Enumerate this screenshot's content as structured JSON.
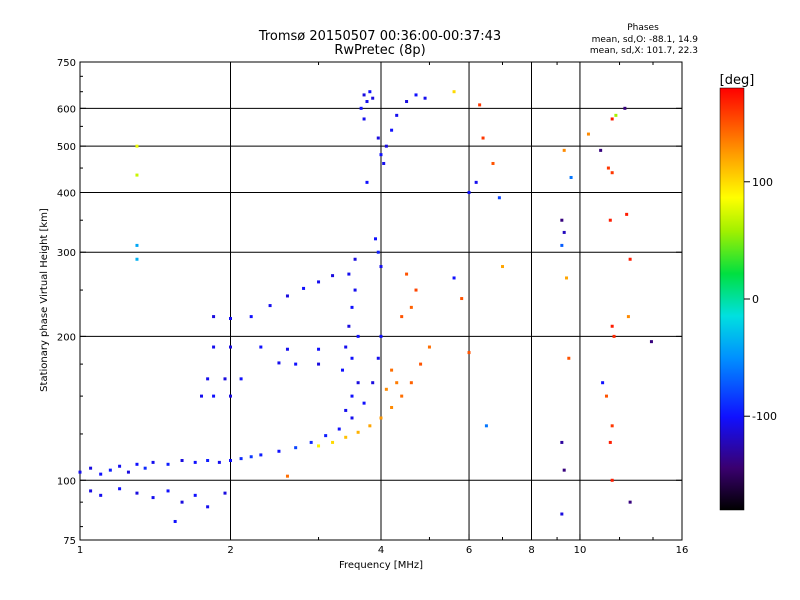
{
  "chart_data": {
    "type": "scatter",
    "title": "Tromsø 20150507 00:36:00-00:37:43",
    "subtitle": "RwPretec (8p)",
    "stats_title": "Phases",
    "stats_line1": "mean, sd,O: -88.1, 14.9",
    "stats_line2": "mean, sd,X: 101.7, 22.3",
    "xlabel": "Frequency [MHz]",
    "ylabel": "Stationary phase Virtual Height [km]",
    "x_scale": "log",
    "y_scale": "log",
    "xlim": [
      1,
      16
    ],
    "ylim": [
      75,
      750
    ],
    "x_ticks": [
      1,
      2,
      4,
      6,
      8,
      10,
      16
    ],
    "x_tick_labels": [
      "1",
      "2",
      "4",
      "6",
      "8",
      "10",
      "16"
    ],
    "y_ticks": [
      75,
      100,
      200,
      300,
      400,
      500,
      600,
      750
    ],
    "y_tick_labels": [
      "75",
      "100",
      "200",
      "300",
      "400",
      "500",
      "600",
      "750"
    ],
    "x_grid": [
      2,
      4,
      6,
      8,
      10
    ],
    "y_grid": [
      100,
      200,
      300,
      400,
      500,
      600
    ],
    "colorbar": {
      "label": "[deg]",
      "range": [
        -180,
        180
      ],
      "ticks": [
        100,
        0,
        -100
      ],
      "tick_labels": [
        "100",
        "0",
        "-100"
      ]
    },
    "series": [
      {
        "values": [
          {
            "x": 1.0,
            "y": 104,
            "c": -105
          },
          {
            "x": 1.05,
            "y": 106,
            "c": -110
          },
          {
            "x": 1.1,
            "y": 103,
            "c": -100
          },
          {
            "x": 1.15,
            "y": 105,
            "c": -95
          },
          {
            "x": 1.2,
            "y": 107,
            "c": -105
          },
          {
            "x": 1.25,
            "y": 104,
            "c": -110
          },
          {
            "x": 1.3,
            "y": 108,
            "c": -100
          },
          {
            "x": 1.35,
            "y": 106,
            "c": -90
          },
          {
            "x": 1.4,
            "y": 109,
            "c": -105
          },
          {
            "x": 1.5,
            "y": 108,
            "c": -95
          },
          {
            "x": 1.6,
            "y": 110,
            "c": -110
          },
          {
            "x": 1.7,
            "y": 109,
            "c": -100
          },
          {
            "x": 1.8,
            "y": 110,
            "c": -95
          },
          {
            "x": 1.9,
            "y": 109,
            "c": -105
          },
          {
            "x": 2.0,
            "y": 110,
            "c": -100
          },
          {
            "x": 2.1,
            "y": 111,
            "c": -90
          },
          {
            "x": 2.2,
            "y": 112,
            "c": -85
          },
          {
            "x": 2.3,
            "y": 113,
            "c": -95
          },
          {
            "x": 2.5,
            "y": 115,
            "c": -100
          },
          {
            "x": 2.7,
            "y": 117,
            "c": -80
          },
          {
            "x": 2.9,
            "y": 120,
            "c": -90
          },
          {
            "x": 3.1,
            "y": 124,
            "c": -95
          },
          {
            "x": 3.3,
            "y": 128,
            "c": -100
          },
          {
            "x": 3.5,
            "y": 135,
            "c": -105
          },
          {
            "x": 3.7,
            "y": 145,
            "c": -100
          },
          {
            "x": 3.85,
            "y": 160,
            "c": -110
          },
          {
            "x": 3.95,
            "y": 180,
            "c": -105
          },
          {
            "x": 4.0,
            "y": 200,
            "c": -100
          },
          {
            "x": 1.05,
            "y": 95,
            "c": -110
          },
          {
            "x": 1.1,
            "y": 93,
            "c": -105
          },
          {
            "x": 1.2,
            "y": 96,
            "c": -100
          },
          {
            "x": 1.3,
            "y": 94,
            "c": -110
          },
          {
            "x": 1.4,
            "y": 92,
            "c": -105
          },
          {
            "x": 1.5,
            "y": 95,
            "c": -100
          },
          {
            "x": 1.6,
            "y": 90,
            "c": -110
          },
          {
            "x": 1.7,
            "y": 93,
            "c": -100
          },
          {
            "x": 1.8,
            "y": 88,
            "c": -105
          },
          {
            "x": 1.95,
            "y": 94,
            "c": -110
          },
          {
            "x": 1.55,
            "y": 82,
            "c": -100
          },
          {
            "x": 1.75,
            "y": 150,
            "c": -105
          },
          {
            "x": 1.85,
            "y": 150,
            "c": -100
          },
          {
            "x": 2.0,
            "y": 150,
            "c": -110
          },
          {
            "x": 1.8,
            "y": 163,
            "c": -105
          },
          {
            "x": 1.95,
            "y": 163,
            "c": -110
          },
          {
            "x": 2.1,
            "y": 163,
            "c": -100
          },
          {
            "x": 1.85,
            "y": 190,
            "c": -105
          },
          {
            "x": 2.0,
            "y": 190,
            "c": -110
          },
          {
            "x": 2.3,
            "y": 190,
            "c": -100
          },
          {
            "x": 2.6,
            "y": 188,
            "c": -105
          },
          {
            "x": 3.0,
            "y": 188,
            "c": -100
          },
          {
            "x": 2.5,
            "y": 176,
            "c": -105
          },
          {
            "x": 2.7,
            "y": 175,
            "c": -100
          },
          {
            "x": 3.0,
            "y": 175,
            "c": -110
          },
          {
            "x": 1.85,
            "y": 220,
            "c": -110
          },
          {
            "x": 2.0,
            "y": 218,
            "c": -105
          },
          {
            "x": 2.2,
            "y": 220,
            "c": -100
          },
          {
            "x": 2.4,
            "y": 232,
            "c": -105
          },
          {
            "x": 2.6,
            "y": 243,
            "c": -110
          },
          {
            "x": 2.8,
            "y": 252,
            "c": -100
          },
          {
            "x": 3.0,
            "y": 260,
            "c": -105
          },
          {
            "x": 3.2,
            "y": 268,
            "c": -110
          },
          {
            "x": 3.35,
            "y": 170,
            "c": -100
          },
          {
            "x": 3.4,
            "y": 190,
            "c": -105
          },
          {
            "x": 3.45,
            "y": 210,
            "c": -110
          },
          {
            "x": 3.5,
            "y": 230,
            "c": -100
          },
          {
            "x": 3.55,
            "y": 250,
            "c": -105
          },
          {
            "x": 3.5,
            "y": 150,
            "c": -100
          },
          {
            "x": 3.6,
            "y": 160,
            "c": -110
          },
          {
            "x": 3.4,
            "y": 140,
            "c": -105
          },
          {
            "x": 3.6,
            "y": 200,
            "c": -100
          },
          {
            "x": 3.45,
            "y": 270,
            "c": -105
          },
          {
            "x": 3.55,
            "y": 290,
            "c": -110
          },
          {
            "x": 3.5,
            "y": 180,
            "c": -100
          },
          {
            "x": 3.9,
            "y": 320,
            "c": -100
          },
          {
            "x": 3.95,
            "y": 300,
            "c": -95
          },
          {
            "x": 4.0,
            "y": 280,
            "c": -105
          },
          {
            "x": 3.7,
            "y": 640,
            "c": -110
          },
          {
            "x": 3.75,
            "y": 620,
            "c": -105
          },
          {
            "x": 3.8,
            "y": 650,
            "c": -100
          },
          {
            "x": 3.85,
            "y": 630,
            "c": -110
          },
          {
            "x": 3.65,
            "y": 600,
            "c": -100
          },
          {
            "x": 3.7,
            "y": 570,
            "c": -105
          },
          {
            "x": 3.95,
            "y": 520,
            "c": -110
          },
          {
            "x": 4.0,
            "y": 480,
            "c": -100
          },
          {
            "x": 4.05,
            "y": 460,
            "c": -105
          },
          {
            "x": 4.1,
            "y": 500,
            "c": -110
          },
          {
            "x": 4.2,
            "y": 540,
            "c": -100
          },
          {
            "x": 4.3,
            "y": 580,
            "c": -105
          },
          {
            "x": 4.5,
            "y": 620,
            "c": -110
          },
          {
            "x": 4.7,
            "y": 640,
            "c": -100
          },
          {
            "x": 4.9,
            "y": 630,
            "c": -105
          },
          {
            "x": 3.75,
            "y": 420,
            "c": -100
          },
          {
            "x": 3.0,
            "y": 118,
            "c": 90
          },
          {
            "x": 3.2,
            "y": 120,
            "c": 100
          },
          {
            "x": 3.4,
            "y": 123,
            "c": 110
          },
          {
            "x": 3.6,
            "y": 126,
            "c": 115
          },
          {
            "x": 3.8,
            "y": 130,
            "c": 120
          },
          {
            "x": 4.0,
            "y": 135,
            "c": 125
          },
          {
            "x": 4.2,
            "y": 142,
            "c": 130
          },
          {
            "x": 4.4,
            "y": 150,
            "c": 140
          },
          {
            "x": 4.6,
            "y": 160,
            "c": 145
          },
          {
            "x": 4.8,
            "y": 175,
            "c": 150
          },
          {
            "x": 5.0,
            "y": 190,
            "c": 140
          },
          {
            "x": 4.4,
            "y": 220,
            "c": 150
          },
          {
            "x": 4.6,
            "y": 230,
            "c": 145
          },
          {
            "x": 4.7,
            "y": 250,
            "c": 155
          },
          {
            "x": 4.5,
            "y": 270,
            "c": 150
          },
          {
            "x": 4.2,
            "y": 170,
            "c": 140
          },
          {
            "x": 4.3,
            "y": 160,
            "c": 135
          },
          {
            "x": 4.1,
            "y": 155,
            "c": 130
          },
          {
            "x": 5.6,
            "y": 265,
            "c": -100
          },
          {
            "x": 5.8,
            "y": 240,
            "c": 150
          },
          {
            "x": 6.0,
            "y": 400,
            "c": -100
          },
          {
            "x": 6.2,
            "y": 420,
            "c": -105
          },
          {
            "x": 6.4,
            "y": 520,
            "c": 160
          },
          {
            "x": 6.7,
            "y": 460,
            "c": 150
          },
          {
            "x": 6.9,
            "y": 390,
            "c": -80
          },
          {
            "x": 7.0,
            "y": 280,
            "c": 120
          },
          {
            "x": 5.6,
            "y": 650,
            "c": 100
          },
          {
            "x": 6.3,
            "y": 610,
            "c": 160
          },
          {
            "x": 6.5,
            "y": 130,
            "c": -60
          },
          {
            "x": 6.0,
            "y": 185,
            "c": 150
          },
          {
            "x": 9.3,
            "y": 490,
            "c": 130
          },
          {
            "x": 9.2,
            "y": 350,
            "c": -140
          },
          {
            "x": 9.3,
            "y": 330,
            "c": -120
          },
          {
            "x": 9.2,
            "y": 310,
            "c": -70
          },
          {
            "x": 9.4,
            "y": 265,
            "c": 120
          },
          {
            "x": 9.5,
            "y": 180,
            "c": 150
          },
          {
            "x": 9.2,
            "y": 120,
            "c": -130
          },
          {
            "x": 9.3,
            "y": 105,
            "c": -140
          },
          {
            "x": 9.2,
            "y": 85,
            "c": -110
          },
          {
            "x": 9.6,
            "y": 430,
            "c": -60
          },
          {
            "x": 10.4,
            "y": 530,
            "c": 130
          },
          {
            "x": 11.0,
            "y": 490,
            "c": -140
          },
          {
            "x": 11.4,
            "y": 450,
            "c": 160
          },
          {
            "x": 11.6,
            "y": 570,
            "c": 170
          },
          {
            "x": 11.8,
            "y": 580,
            "c": 60
          },
          {
            "x": 11.6,
            "y": 440,
            "c": 160
          },
          {
            "x": 11.5,
            "y": 350,
            "c": 170
          },
          {
            "x": 11.6,
            "y": 210,
            "c": 170
          },
          {
            "x": 11.7,
            "y": 200,
            "c": 165
          },
          {
            "x": 11.1,
            "y": 160,
            "c": -100
          },
          {
            "x": 11.3,
            "y": 150,
            "c": 150
          },
          {
            "x": 11.6,
            "y": 130,
            "c": 160
          },
          {
            "x": 11.5,
            "y": 120,
            "c": 170
          },
          {
            "x": 11.6,
            "y": 100,
            "c": 170
          },
          {
            "x": 12.3,
            "y": 600,
            "c": -140
          },
          {
            "x": 12.6,
            "y": 290,
            "c": 170
          },
          {
            "x": 12.4,
            "y": 360,
            "c": 170
          },
          {
            "x": 12.5,
            "y": 220,
            "c": 130
          },
          {
            "x": 12.6,
            "y": 90,
            "c": -140
          },
          {
            "x": 13.9,
            "y": 195,
            "c": -140
          },
          {
            "x": 1.3,
            "y": 500,
            "c": 80
          },
          {
            "x": 1.3,
            "y": 435,
            "c": 70
          },
          {
            "x": 1.3,
            "y": 310,
            "c": -40
          },
          {
            "x": 1.3,
            "y": 290,
            "c": -35
          },
          {
            "x": 2.6,
            "y": 102,
            "c": 140
          }
        ]
      }
    ]
  }
}
